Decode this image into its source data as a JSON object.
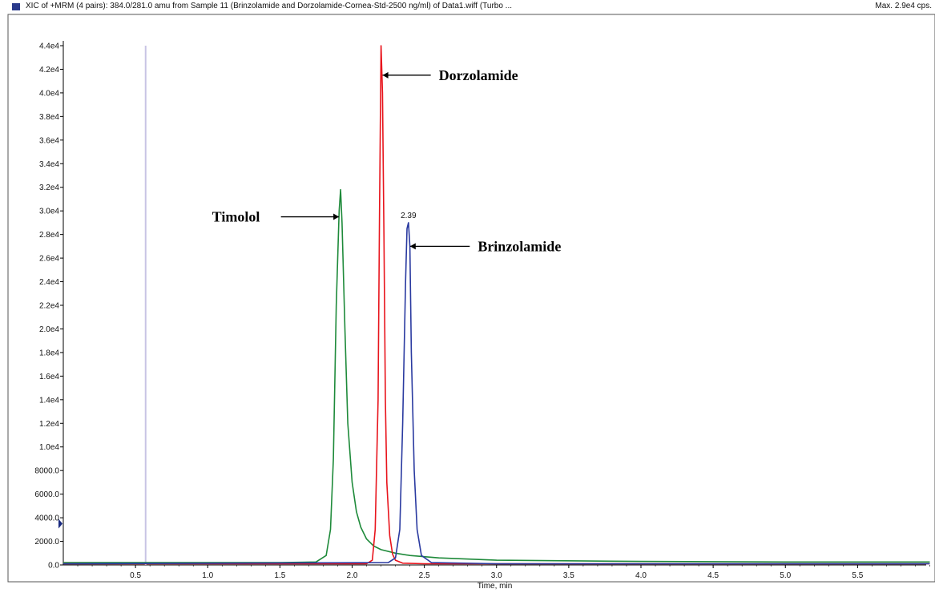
{
  "header": {
    "title": "XIC of +MRM (4 pairs): 384.0/281.0 amu from Sample 11 (Brinzolamide and Dorzolamide-Cornea-Std-2500 ng/ml) of Data1.wiff (Turbo ...",
    "max_label": "Max. 2.9e4 cps."
  },
  "colors": {
    "timolol": "#1e8a3a",
    "dorzolamide": "#e8141c",
    "brinzolamide": "#2a3aa0",
    "marker": "#c8c4e4",
    "axis": "#000000"
  },
  "chart_data": {
    "type": "line",
    "xlabel": "Time, min",
    "ylabel": "",
    "xlim": [
      0.0,
      6.0
    ],
    "ylim": [
      0,
      44000
    ],
    "x_ticks": [
      0.5,
      1.0,
      1.5,
      2.0,
      2.5,
      3.0,
      3.5,
      4.0,
      4.5,
      5.0,
      5.5
    ],
    "x_tick_labels": [
      "0.5",
      "1.0",
      "1.5",
      "2.0",
      "2.5",
      "3.0",
      "3.5",
      "4.0",
      "4.5",
      "5.0",
      "5.5"
    ],
    "y_ticks": [
      0,
      2000,
      4000,
      6000,
      8000,
      10000,
      12000,
      14000,
      16000,
      18000,
      20000,
      22000,
      24000,
      26000,
      28000,
      30000,
      32000,
      34000,
      36000,
      38000,
      40000,
      42000,
      44000
    ],
    "y_tick_labels": [
      "0.0",
      "2000.0",
      "4000.0",
      "6000.0",
      "8000.0",
      "1.0e4",
      "1.2e4",
      "1.4e4",
      "1.6e4",
      "1.8e4",
      "2.0e4",
      "2.2e4",
      "2.4e4",
      "2.6e4",
      "2.8e4",
      "3.0e4",
      "3.2e4",
      "3.4e4",
      "3.6e4",
      "3.8e4",
      "4.0e4",
      "4.2e4",
      "4.4e4"
    ],
    "marker_line_x": 0.57,
    "series": [
      {
        "key": "timolol",
        "x": [
          0.0,
          0.5,
          1.0,
          1.5,
          1.75,
          1.82,
          1.85,
          1.87,
          1.89,
          1.91,
          1.92,
          1.93,
          1.95,
          1.97,
          2.0,
          2.03,
          2.06,
          2.1,
          2.15,
          2.2,
          2.3,
          2.4,
          2.6,
          3.0,
          4.0,
          5.0,
          6.0
        ],
        "y": [
          200,
          200,
          200,
          200,
          250,
          800,
          3000,
          9000,
          22000,
          30000,
          31800,
          29000,
          20000,
          12000,
          7000,
          4500,
          3200,
          2200,
          1600,
          1300,
          1000,
          800,
          600,
          400,
          300,
          250,
          250
        ]
      },
      {
        "key": "dorzolamide",
        "x": [
          0.0,
          2.1,
          2.14,
          2.16,
          2.18,
          2.19,
          2.2,
          2.21,
          2.22,
          2.23,
          2.24,
          2.26,
          2.28,
          2.3,
          2.35,
          2.5,
          3.0,
          6.0
        ],
        "y": [
          100,
          100,
          400,
          3000,
          14000,
          30000,
          44000,
          40000,
          28000,
          14000,
          7000,
          2500,
          900,
          400,
          150,
          100,
          100,
          100
        ]
      },
      {
        "key": "brinzolamide",
        "x": [
          0.0,
          2.25,
          2.3,
          2.33,
          2.35,
          2.37,
          2.38,
          2.39,
          2.4,
          2.41,
          2.43,
          2.45,
          2.48,
          2.55,
          3.0,
          6.0
        ],
        "y": [
          100,
          200,
          600,
          3000,
          12000,
          24000,
          28500,
          29000,
          27000,
          18000,
          8000,
          3000,
          800,
          200,
          100,
          100
        ]
      }
    ],
    "annotations": [
      {
        "text": "Dorzolamide",
        "arrow_to": [
          2.2,
          41500
        ],
        "text_at": [
          2.6,
          41500
        ]
      },
      {
        "text": "Timolol",
        "arrow_to": [
          1.92,
          29500
        ],
        "text_at": [
          1.03,
          29500
        ]
      },
      {
        "text": "Brinzolamide",
        "arrow_to": [
          2.39,
          27000
        ],
        "text_at": [
          2.87,
          27000
        ]
      }
    ],
    "peak_labels": [
      {
        "text": "2.39",
        "x": 2.39,
        "y": 29000
      }
    ]
  }
}
